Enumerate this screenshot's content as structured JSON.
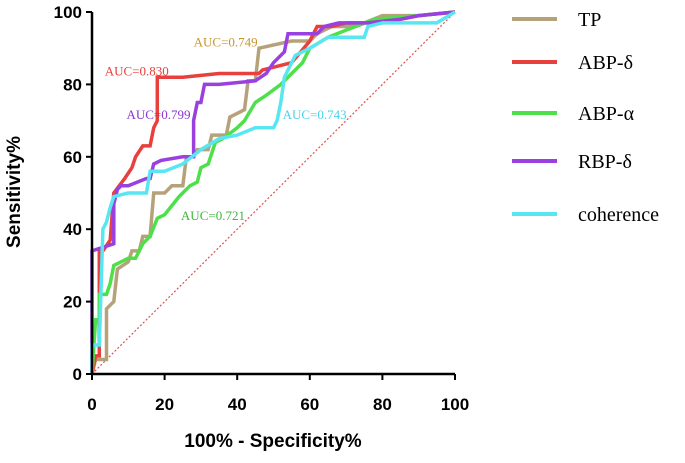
{
  "chart_data": {
    "type": "line",
    "title": "",
    "xlabel": "100% - Specificity%",
    "ylabel": "Sensitivity%",
    "xlim": [
      0,
      100
    ],
    "ylim": [
      0,
      100
    ],
    "xticks": [
      0,
      20,
      40,
      60,
      80,
      100
    ],
    "yticks": [
      0,
      20,
      40,
      60,
      80,
      100
    ],
    "grid": false,
    "legend_position": "right",
    "reference_line": {
      "style": "dotted",
      "color": "#d9534f",
      "from": [
        0,
        0
      ],
      "to": [
        100,
        100
      ]
    },
    "series": [
      {
        "name": "TP",
        "color": "#b5a27a",
        "auc_label": "AUC=0.749",
        "auc_color": "#c9962e",
        "points": [
          [
            0,
            0
          ],
          [
            1,
            4
          ],
          [
            4,
            4
          ],
          [
            4,
            18
          ],
          [
            6,
            20
          ],
          [
            7,
            29
          ],
          [
            10,
            31
          ],
          [
            11,
            34
          ],
          [
            13,
            34
          ],
          [
            14,
            38
          ],
          [
            16,
            38
          ],
          [
            17,
            50
          ],
          [
            20,
            50
          ],
          [
            22,
            52
          ],
          [
            25,
            52
          ],
          [
            26,
            60
          ],
          [
            28,
            60
          ],
          [
            29,
            62
          ],
          [
            32,
            62
          ],
          [
            33,
            66
          ],
          [
            37,
            66
          ],
          [
            38,
            71
          ],
          [
            42,
            73
          ],
          [
            43,
            81
          ],
          [
            45,
            81
          ],
          [
            46,
            90
          ],
          [
            55,
            92
          ],
          [
            60,
            92
          ],
          [
            62,
            94
          ],
          [
            66,
            96
          ],
          [
            70,
            96
          ],
          [
            75,
            97
          ],
          [
            80,
            99
          ],
          [
            90,
            99
          ],
          [
            100,
            100
          ]
        ]
      },
      {
        "name": "ABP-δ",
        "color": "#e8403d",
        "auc_label": "AUC=0.830",
        "auc_color": "#e8403d",
        "points": [
          [
            0,
            0
          ],
          [
            1,
            5
          ],
          [
            2,
            5
          ],
          [
            2,
            34
          ],
          [
            3,
            34
          ],
          [
            5,
            37
          ],
          [
            6,
            50
          ],
          [
            9,
            54
          ],
          [
            11,
            57
          ],
          [
            12,
            60
          ],
          [
            14,
            63
          ],
          [
            16,
            63
          ],
          [
            17,
            68
          ],
          [
            18,
            70
          ],
          [
            18,
            82
          ],
          [
            25,
            82
          ],
          [
            35,
            83
          ],
          [
            46,
            83
          ],
          [
            47,
            84
          ],
          [
            55,
            86
          ],
          [
            60,
            92
          ],
          [
            62,
            96
          ],
          [
            66,
            96
          ],
          [
            70,
            97
          ],
          [
            80,
            97
          ],
          [
            90,
            99
          ],
          [
            100,
            100
          ]
        ]
      },
      {
        "name": "ABP-α",
        "color": "#4ee04a",
        "auc_label": "AUC=0.721",
        "auc_color": "#3bb83a",
        "points": [
          [
            0,
            0
          ],
          [
            1,
            15
          ],
          [
            2,
            15
          ],
          [
            2,
            22
          ],
          [
            4,
            22
          ],
          [
            5,
            25
          ],
          [
            6,
            30
          ],
          [
            10,
            32
          ],
          [
            12,
            32
          ],
          [
            14,
            36
          ],
          [
            16,
            38
          ],
          [
            18,
            43
          ],
          [
            20,
            44
          ],
          [
            24,
            49
          ],
          [
            27,
            52
          ],
          [
            29,
            53
          ],
          [
            30,
            57
          ],
          [
            32,
            58
          ],
          [
            34,
            64
          ],
          [
            36,
            65
          ],
          [
            40,
            68
          ],
          [
            42,
            70
          ],
          [
            45,
            75
          ],
          [
            48,
            77
          ],
          [
            52,
            80
          ],
          [
            56,
            84
          ],
          [
            58,
            86
          ],
          [
            60,
            90
          ],
          [
            65,
            93
          ],
          [
            70,
            95
          ],
          [
            78,
            98
          ],
          [
            90,
            99
          ],
          [
            100,
            100
          ]
        ]
      },
      {
        "name": "RBP-δ",
        "color": "#9a3fe0",
        "auc_label": "AUC=0.799",
        "auc_color": "#8a34d4",
        "points": [
          [
            0,
            0
          ],
          [
            0,
            34
          ],
          [
            3,
            35
          ],
          [
            6,
            36
          ],
          [
            6,
            47
          ],
          [
            7,
            51
          ],
          [
            8,
            52
          ],
          [
            10,
            52
          ],
          [
            15,
            54
          ],
          [
            16,
            54
          ],
          [
            17,
            58
          ],
          [
            19,
            59
          ],
          [
            25,
            60
          ],
          [
            28,
            60
          ],
          [
            28,
            70
          ],
          [
            29,
            75
          ],
          [
            30,
            75
          ],
          [
            31,
            80
          ],
          [
            35,
            80
          ],
          [
            45,
            81
          ],
          [
            48,
            83
          ],
          [
            50,
            86
          ],
          [
            53,
            89
          ],
          [
            54,
            94
          ],
          [
            58,
            94
          ],
          [
            62,
            94
          ],
          [
            64,
            96
          ],
          [
            68,
            97
          ],
          [
            76,
            97
          ],
          [
            85,
            98
          ],
          [
            90,
            99
          ],
          [
            100,
            100
          ]
        ]
      },
      {
        "name": "coherence",
        "color": "#59e6f2",
        "auc_label": "AUC=0.743",
        "auc_color": "#4ad1e8",
        "points": [
          [
            0,
            0
          ],
          [
            0,
            8
          ],
          [
            2,
            8
          ],
          [
            3,
            40
          ],
          [
            4,
            42
          ],
          [
            5,
            46
          ],
          [
            6,
            49
          ],
          [
            10,
            50
          ],
          [
            15,
            50
          ],
          [
            16,
            56
          ],
          [
            20,
            56
          ],
          [
            25,
            58
          ],
          [
            30,
            62
          ],
          [
            35,
            65
          ],
          [
            40,
            66
          ],
          [
            45,
            68
          ],
          [
            50,
            68
          ],
          [
            51,
            70
          ],
          [
            52,
            75
          ],
          [
            53,
            82
          ],
          [
            56,
            88
          ],
          [
            60,
            90
          ],
          [
            65,
            93
          ],
          [
            70,
            93
          ],
          [
            75,
            93
          ],
          [
            76,
            96
          ],
          [
            80,
            97
          ],
          [
            95,
            97
          ],
          [
            100,
            100
          ]
        ]
      }
    ]
  }
}
